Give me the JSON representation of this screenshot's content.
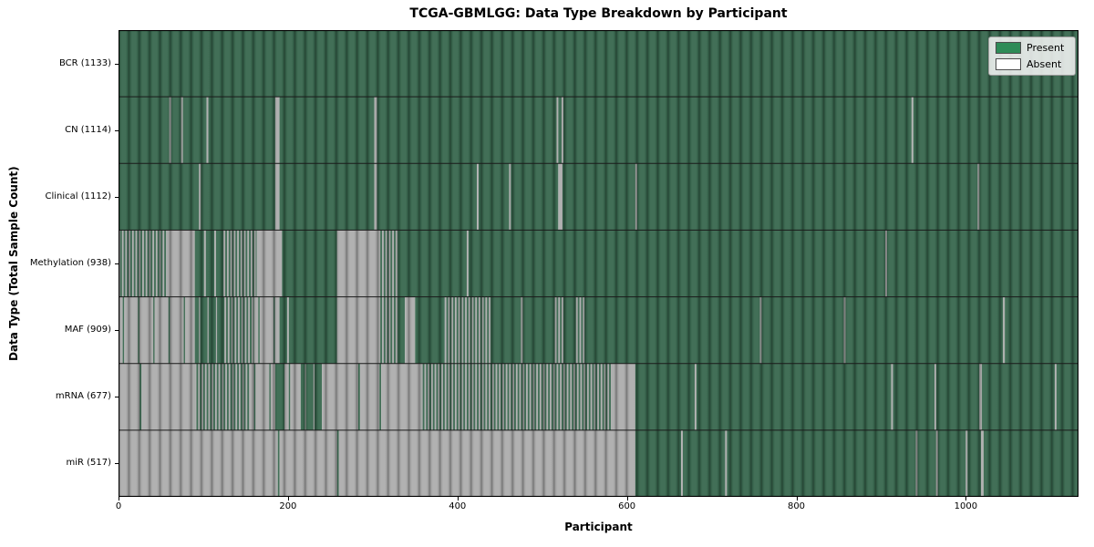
{
  "title": "TCGA-GBMLGG: Data Type Breakdown by Participant",
  "x_axis_label": "Participant",
  "y_axis_label": "Data Type (Total Sample Count)",
  "legend": {
    "present_label": "Present",
    "absent_label": "Absent"
  },
  "colors": {
    "present_fill": "#38674e",
    "absent_fill": "#adadad",
    "legend_present": "#2e8b57",
    "legend_absent": "#ffffff",
    "row_separator": "#1a1a1a",
    "spine": "#000000"
  },
  "chart_data": {
    "type": "heatmap",
    "title": "TCGA-GBMLGG: Data Type Breakdown by Participant",
    "xlabel": "Participant",
    "ylabel": "Data Type (Total Sample Count)",
    "legend_entries": [
      "Present",
      "Absent"
    ],
    "legend_position": "upper right",
    "x_range": [
      0,
      1133
    ],
    "x_ticks": [
      0,
      200,
      400,
      600,
      800,
      1000
    ],
    "cell_states": [
      "present",
      "absent",
      "mixed",
      "mostly_absent",
      "mostly_present"
    ],
    "rows": [
      {
        "label": "BCR (1133)",
        "name": "BCR",
        "present_count": 1133,
        "segments": [
          [
            0,
            1133,
            "present"
          ]
        ]
      },
      {
        "label": "CN (1114)",
        "name": "CN",
        "present_count": 1114,
        "segments": [
          [
            0,
            60,
            "present"
          ],
          [
            60,
            62,
            "absent"
          ],
          [
            62,
            74,
            "present"
          ],
          [
            74,
            76,
            "absent"
          ],
          [
            76,
            104,
            "present"
          ],
          [
            104,
            106,
            "absent"
          ],
          [
            106,
            185,
            "present"
          ],
          [
            185,
            190,
            "absent"
          ],
          [
            190,
            302,
            "present"
          ],
          [
            302,
            305,
            "absent"
          ],
          [
            305,
            517,
            "present"
          ],
          [
            517,
            519,
            "absent"
          ],
          [
            519,
            523,
            "present"
          ],
          [
            523,
            525,
            "absent"
          ],
          [
            525,
            936,
            "present"
          ],
          [
            936,
            938,
            "absent"
          ],
          [
            938,
            1133,
            "present"
          ]
        ]
      },
      {
        "label": "Clinical (1112)",
        "name": "Clinical",
        "present_count": 1112,
        "segments": [
          [
            0,
            95,
            "present"
          ],
          [
            95,
            97,
            "absent"
          ],
          [
            97,
            185,
            "present"
          ],
          [
            185,
            190,
            "absent"
          ],
          [
            190,
            302,
            "present"
          ],
          [
            302,
            305,
            "absent"
          ],
          [
            305,
            423,
            "present"
          ],
          [
            423,
            425,
            "absent"
          ],
          [
            425,
            461,
            "present"
          ],
          [
            461,
            463,
            "absent"
          ],
          [
            463,
            519,
            "present"
          ],
          [
            519,
            524,
            "absent"
          ],
          [
            524,
            610,
            "present"
          ],
          [
            610,
            612,
            "absent"
          ],
          [
            612,
            1014,
            "present"
          ],
          [
            1014,
            1016,
            "absent"
          ],
          [
            1016,
            1133,
            "present"
          ]
        ]
      },
      {
        "label": "Methylation (938)",
        "name": "Methylation",
        "present_count": 938,
        "segments": [
          [
            0,
            58,
            "mixed"
          ],
          [
            58,
            90,
            "absent"
          ],
          [
            90,
            101,
            "present"
          ],
          [
            101,
            103,
            "absent"
          ],
          [
            103,
            113,
            "present"
          ],
          [
            113,
            115,
            "absent"
          ],
          [
            115,
            124,
            "present"
          ],
          [
            124,
            163,
            "mixed"
          ],
          [
            163,
            193,
            "absent"
          ],
          [
            193,
            258,
            "present"
          ],
          [
            258,
            307,
            "absent"
          ],
          [
            307,
            330,
            "mixed"
          ],
          [
            330,
            411,
            "present"
          ],
          [
            411,
            413,
            "absent"
          ],
          [
            413,
            905,
            "present"
          ],
          [
            905,
            907,
            "absent"
          ],
          [
            907,
            1133,
            "present"
          ]
        ]
      },
      {
        "label": "MAF (909)",
        "name": "MAF",
        "present_count": 909,
        "segments": [
          [
            0,
            90,
            "mostly_absent"
          ],
          [
            90,
            125,
            "mostly_present"
          ],
          [
            125,
            160,
            "mixed"
          ],
          [
            160,
            190,
            "mostly_absent"
          ],
          [
            190,
            199,
            "present"
          ],
          [
            199,
            201,
            "absent"
          ],
          [
            201,
            258,
            "present"
          ],
          [
            258,
            307,
            "absent"
          ],
          [
            307,
            330,
            "mixed"
          ],
          [
            330,
            338,
            "present"
          ],
          [
            338,
            350,
            "absent"
          ],
          [
            350,
            385,
            "present"
          ],
          [
            385,
            440,
            "mixed"
          ],
          [
            440,
            475,
            "present"
          ],
          [
            475,
            477,
            "absent"
          ],
          [
            477,
            515,
            "present"
          ],
          [
            515,
            525,
            "mixed"
          ],
          [
            525,
            540,
            "present"
          ],
          [
            540,
            552,
            "mixed"
          ],
          [
            552,
            757,
            "present"
          ],
          [
            757,
            759,
            "absent"
          ],
          [
            759,
            856,
            "present"
          ],
          [
            856,
            858,
            "absent"
          ],
          [
            858,
            1044,
            "present"
          ],
          [
            1044,
            1046,
            "absent"
          ],
          [
            1046,
            1133,
            "present"
          ]
        ]
      },
      {
        "label": "mRNA (677)",
        "name": "mRNA",
        "present_count": 677,
        "segments": [
          [
            0,
            25,
            "absent"
          ],
          [
            25,
            27,
            "present"
          ],
          [
            27,
            90,
            "absent"
          ],
          [
            90,
            155,
            "mixed"
          ],
          [
            155,
            185,
            "mostly_absent"
          ],
          [
            185,
            196,
            "present"
          ],
          [
            196,
            215,
            "mostly_absent"
          ],
          [
            215,
            240,
            "mostly_present"
          ],
          [
            240,
            283,
            "absent"
          ],
          [
            283,
            285,
            "present"
          ],
          [
            285,
            308,
            "absent"
          ],
          [
            308,
            310,
            "present"
          ],
          [
            310,
            357,
            "absent"
          ],
          [
            357,
            583,
            "mixed"
          ],
          [
            583,
            610,
            "absent"
          ],
          [
            610,
            680,
            "present"
          ],
          [
            680,
            682,
            "absent"
          ],
          [
            682,
            912,
            "present"
          ],
          [
            912,
            914,
            "absent"
          ],
          [
            914,
            963,
            "present"
          ],
          [
            963,
            965,
            "absent"
          ],
          [
            965,
            1016,
            "present"
          ],
          [
            1016,
            1019,
            "absent"
          ],
          [
            1019,
            1105,
            "present"
          ],
          [
            1105,
            1107,
            "absent"
          ],
          [
            1107,
            1133,
            "present"
          ]
        ]
      },
      {
        "label": "miR (517)",
        "name": "miR",
        "present_count": 517,
        "segments": [
          [
            0,
            188,
            "absent"
          ],
          [
            188,
            190,
            "present"
          ],
          [
            190,
            258,
            "absent"
          ],
          [
            258,
            260,
            "present"
          ],
          [
            260,
            610,
            "absent"
          ],
          [
            610,
            664,
            "present"
          ],
          [
            664,
            666,
            "absent"
          ],
          [
            666,
            716,
            "present"
          ],
          [
            716,
            718,
            "absent"
          ],
          [
            718,
            941,
            "present"
          ],
          [
            941,
            943,
            "absent"
          ],
          [
            943,
            965,
            "present"
          ],
          [
            965,
            967,
            "absent"
          ],
          [
            967,
            1000,
            "present"
          ],
          [
            1000,
            1002,
            "absent"
          ],
          [
            1002,
            1018,
            "present"
          ],
          [
            1018,
            1021,
            "absent"
          ],
          [
            1021,
            1133,
            "present"
          ]
        ]
      }
    ]
  }
}
